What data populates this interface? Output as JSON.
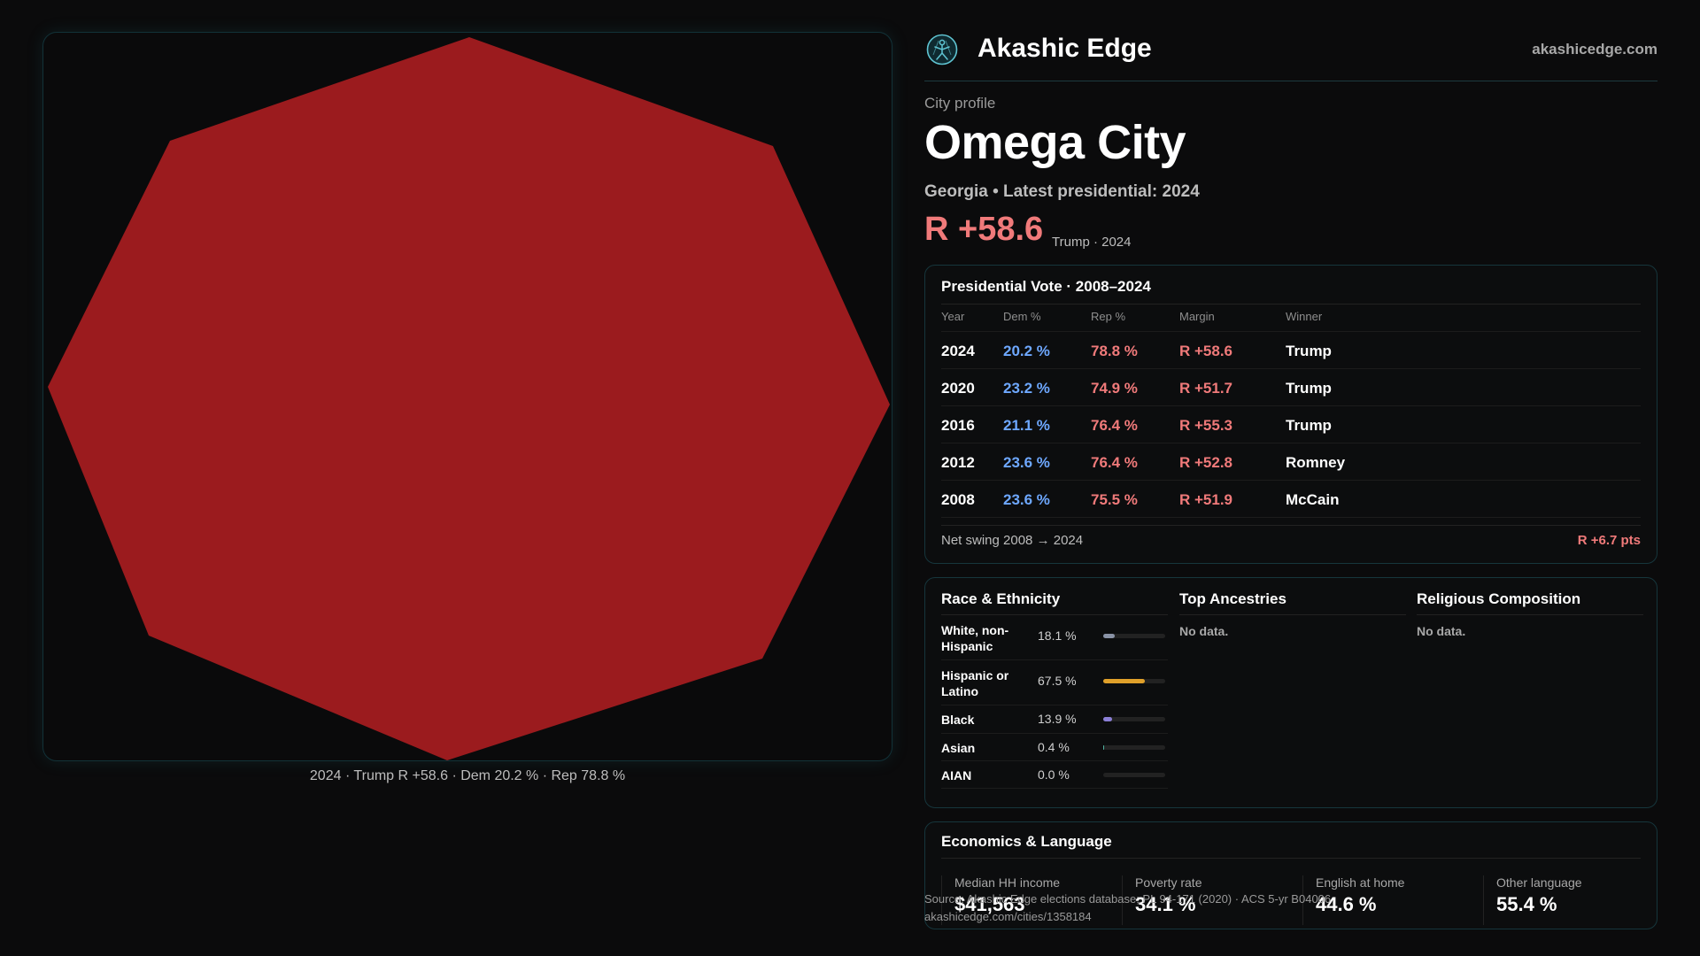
{
  "brand": {
    "name": "Akashic Edge",
    "site": "akashicedge.com",
    "icon": "stylized-figure-icon",
    "accent": "#5fc4d2"
  },
  "profile": {
    "eyebrow": "City profile",
    "city": "Omega City",
    "subtitle": "Georgia • Latest presidential: 2024",
    "margin": "R +58.6",
    "margin_note": "Trump · 2024",
    "rep_color": "#f07a7a",
    "dem_color": "#6ea8ff"
  },
  "map": {
    "caption": "2024 · Trump R +58.6 · Dem 20.2 % · Rep 78.8 %",
    "fill_color": "#9b1b1e",
    "border_color": "#123238"
  },
  "vote": {
    "title": "Presidential Vote · 2008–2024",
    "headers": {
      "year": "Year",
      "dem": "Dem %",
      "rep": "Rep %",
      "margin": "Margin",
      "winner": "Winner"
    },
    "rows": [
      {
        "year": "2024",
        "dem": "20.2 %",
        "rep": "78.8 %",
        "margin": "R +58.6",
        "winner": "Trump"
      },
      {
        "year": "2020",
        "dem": "23.2 %",
        "rep": "74.9 %",
        "margin": "R +51.7",
        "winner": "Trump"
      },
      {
        "year": "2016",
        "dem": "21.1 %",
        "rep": "76.4 %",
        "margin": "R +55.3",
        "winner": "Trump"
      },
      {
        "year": "2012",
        "dem": "23.6 %",
        "rep": "76.4 %",
        "margin": "R +52.8",
        "winner": "Romney"
      },
      {
        "year": "2008",
        "dem": "23.6 %",
        "rep": "75.5 %",
        "margin": "R +51.9",
        "winner": "McCain"
      }
    ],
    "swing_label": "Net swing 2008 → 2024",
    "swing_value": "R +6.7 pts"
  },
  "race": {
    "title": "Race & Ethnicity",
    "rows": [
      {
        "label": "White, non-Hispanic",
        "pct": "18.1 %",
        "value": 0.181,
        "color": "#8a93a6"
      },
      {
        "label": "Hispanic or Latino",
        "pct": "67.5 %",
        "value": 0.675,
        "color": "#e0a02a"
      },
      {
        "label": "Black",
        "pct": "13.9 %",
        "value": 0.139,
        "color": "#8b7fd6"
      },
      {
        "label": "Asian",
        "pct": "0.4 %",
        "value": 0.004,
        "color": "#4fb3a0"
      },
      {
        "label": "AIAN",
        "pct": "0.0 %",
        "value": 0.0,
        "color": "#c77dba"
      }
    ]
  },
  "ancestries": {
    "title": "Top Ancestries",
    "empty": "No data."
  },
  "religion": {
    "title": "Religious Composition",
    "empty": "No data."
  },
  "economics": {
    "title": "Economics & Language",
    "cells": [
      {
        "label": "Median HH income",
        "value": "$41,563"
      },
      {
        "label": "Poverty rate",
        "value": "34.1 %"
      },
      {
        "label": "English at home",
        "value": "44.6 %"
      },
      {
        "label": "Other language",
        "value": "55.4 %"
      }
    ]
  },
  "source": {
    "line1": "Source: Akashic Edge elections database; PL 94-171 (2020) · ACS 5-yr B04006",
    "line2": "akashicedge.com/cities/1358184"
  }
}
